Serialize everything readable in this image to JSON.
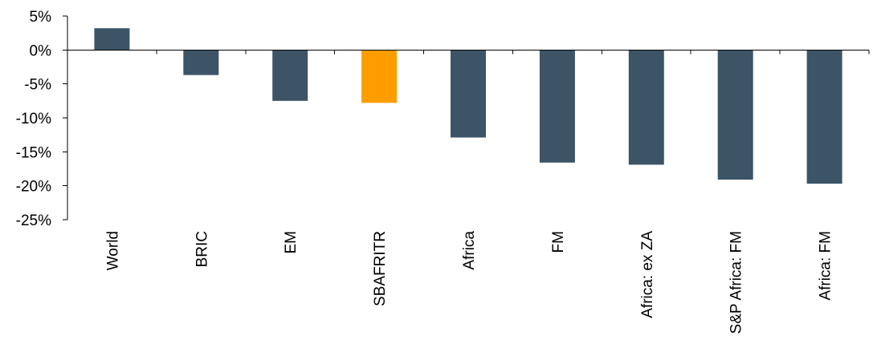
{
  "chart_data": {
    "type": "bar",
    "title": "",
    "xlabel": "",
    "ylabel": "",
    "categories": [
      "World",
      "BRIC",
      "EM",
      "SBAFRITR",
      "Africa",
      "FM",
      "Africa: ex ZA",
      "S&P Africa: FM",
      "Africa: FM"
    ],
    "values": [
      3.2,
      -3.7,
      -7.5,
      -7.8,
      -12.9,
      -16.6,
      -16.9,
      -19.1,
      -19.7
    ],
    "ylim": [
      -25,
      5
    ],
    "yticks": [
      5,
      0,
      -5,
      -10,
      -15,
      -20,
      -25
    ],
    "ytick_labels": [
      "5%",
      "0%",
      "-5%",
      "-10%",
      "-15%",
      "-20%",
      "-25%"
    ],
    "grid": false,
    "legend": "none",
    "colors": {
      "default_bar": "#3d5467",
      "highlight_bar": "#ff9c00",
      "highlight_category": "SBAFRITR",
      "axis": "#000000"
    }
  }
}
